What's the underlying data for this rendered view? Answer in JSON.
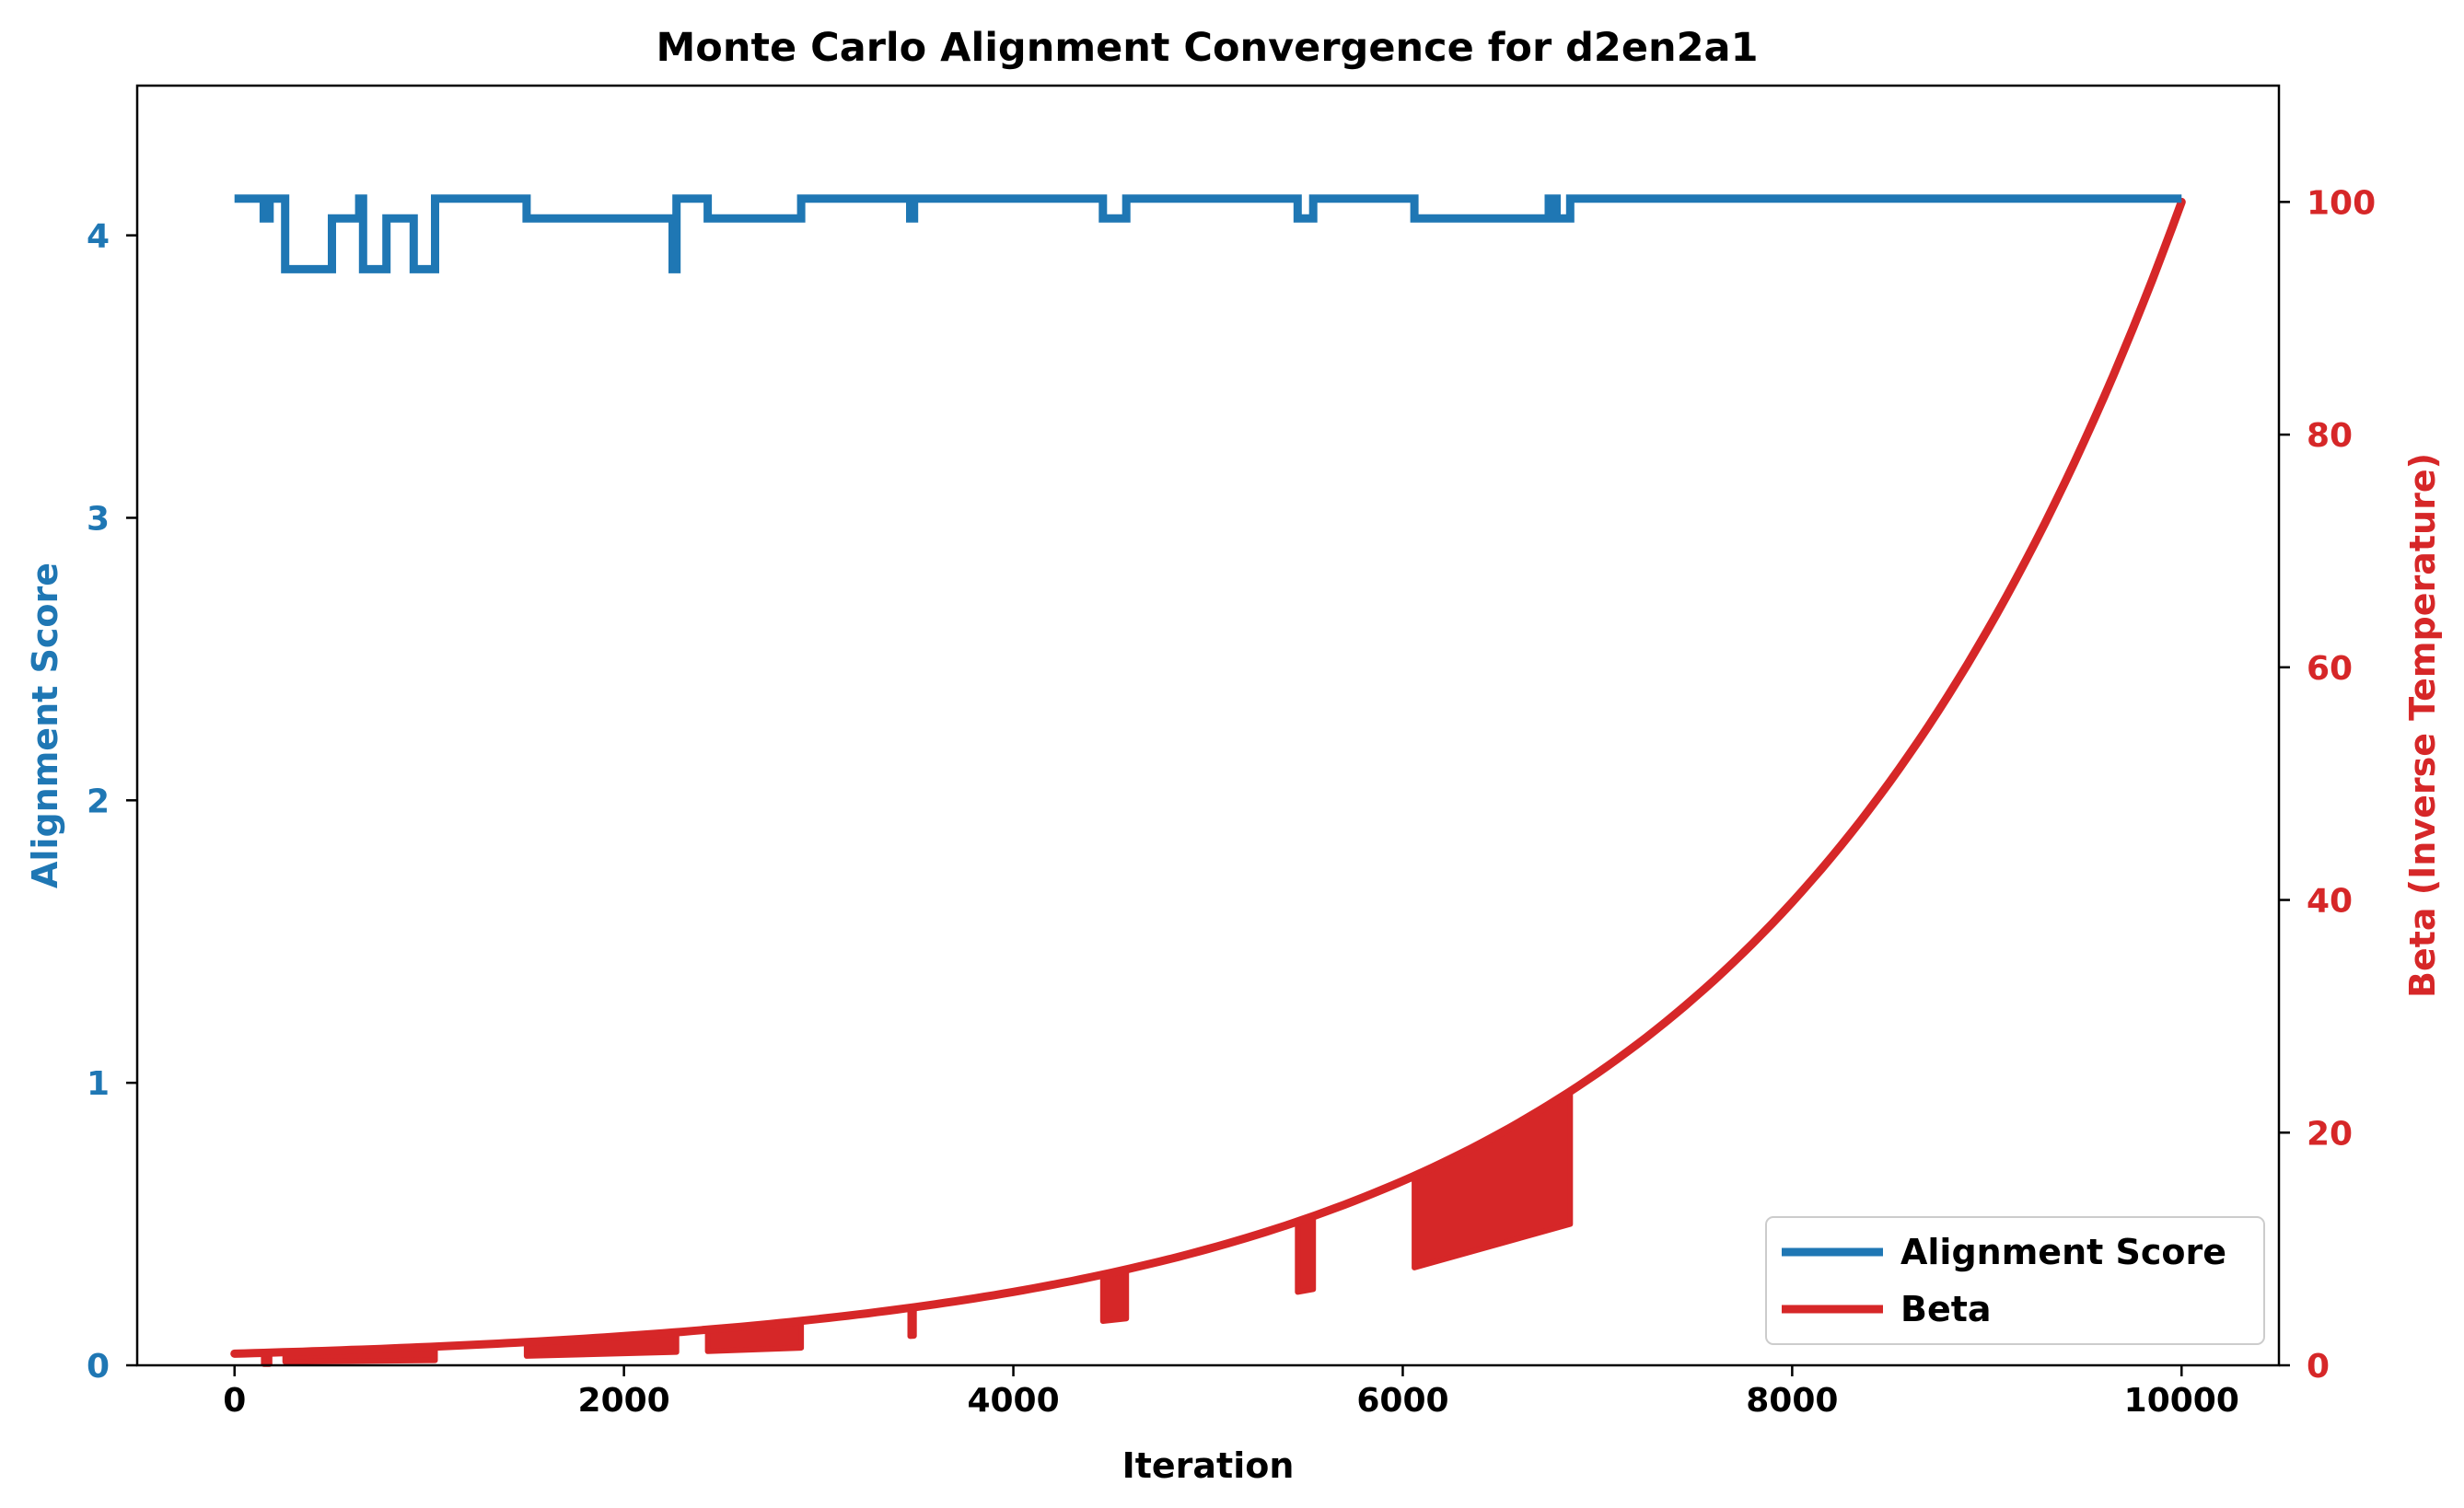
{
  "chart_data": {
    "type": "line",
    "title": "Monte Carlo Alignment Convergence for d2en2a1",
    "xlabel": "Iteration",
    "ylabel_left": "Alignment Score",
    "ylabel_right": "Beta (Inverse Temperature)",
    "xlim": [
      -500,
      10500
    ],
    "ylim_left": [
      0,
      4.53
    ],
    "ylim_right": [
      0,
      110
    ],
    "x_ticks": [
      0,
      2000,
      4000,
      6000,
      8000,
      10000
    ],
    "y_ticks_left": [
      0,
      1,
      2,
      3,
      4
    ],
    "y_ticks_right": [
      0,
      20,
      40,
      60,
      80,
      100
    ],
    "grid": false,
    "legend_position": "lower-right",
    "colors": {
      "alignment": "#1f77b4",
      "beta": "#d62728",
      "axis": "#000000"
    },
    "series": [
      {
        "name": "Alignment Score",
        "axis": "left",
        "step_points": [
          [
            0,
            4.13
          ],
          [
            150,
            4.13
          ],
          [
            150,
            4.06
          ],
          [
            180,
            4.06
          ],
          [
            180,
            4.13
          ],
          [
            260,
            4.13
          ],
          [
            260,
            3.88
          ],
          [
            500,
            3.88
          ],
          [
            500,
            4.06
          ],
          [
            640,
            4.06
          ],
          [
            640,
            4.13
          ],
          [
            660,
            4.13
          ],
          [
            660,
            3.88
          ],
          [
            780,
            3.88
          ],
          [
            780,
            4.06
          ],
          [
            920,
            4.06
          ],
          [
            920,
            3.88
          ],
          [
            1030,
            3.88
          ],
          [
            1030,
            4.13
          ],
          [
            1500,
            4.13
          ],
          [
            1500,
            4.06
          ],
          [
            2250,
            4.06
          ],
          [
            2250,
            3.88
          ],
          [
            2270,
            3.88
          ],
          [
            2270,
            4.13
          ],
          [
            2430,
            4.13
          ],
          [
            2430,
            4.06
          ],
          [
            2910,
            4.06
          ],
          [
            2910,
            4.13
          ],
          [
            3470,
            4.13
          ],
          [
            3470,
            4.06
          ],
          [
            3490,
            4.06
          ],
          [
            3490,
            4.13
          ],
          [
            4460,
            4.13
          ],
          [
            4460,
            4.06
          ],
          [
            4580,
            4.06
          ],
          [
            4580,
            4.13
          ],
          [
            5460,
            4.13
          ],
          [
            5460,
            4.06
          ],
          [
            5540,
            4.06
          ],
          [
            5540,
            4.13
          ],
          [
            6060,
            4.13
          ],
          [
            6060,
            4.06
          ],
          [
            6750,
            4.06
          ],
          [
            6750,
            4.13
          ],
          [
            6790,
            4.13
          ],
          [
            6790,
            4.06
          ],
          [
            6860,
            4.06
          ],
          [
            6860,
            4.13
          ],
          [
            10000,
            4.13
          ]
        ]
      },
      {
        "name": "Beta",
        "axis": "right",
        "curve": {
          "start": [
            0,
            1.0
          ],
          "end": [
            10000,
            100.0
          ],
          "form": "exponential"
        },
        "dip_regions": [
          {
            "x_start": 150,
            "x_end": 180,
            "low": 0.1
          },
          {
            "x_start": 260,
            "x_end": 1030,
            "low": 0.3
          },
          {
            "x_start": 1500,
            "x_end": 2270,
            "low": 0.8
          },
          {
            "x_start": 2430,
            "x_end": 2910,
            "low": 1.2
          },
          {
            "x_start": 3470,
            "x_end": 3490,
            "low": 2.5
          },
          {
            "x_start": 4460,
            "x_end": 4580,
            "low": 3.8
          },
          {
            "x_start": 5460,
            "x_end": 5540,
            "low": 6.3
          },
          {
            "x_start": 6060,
            "x_end": 6860,
            "low": 8.4
          }
        ]
      }
    ]
  }
}
